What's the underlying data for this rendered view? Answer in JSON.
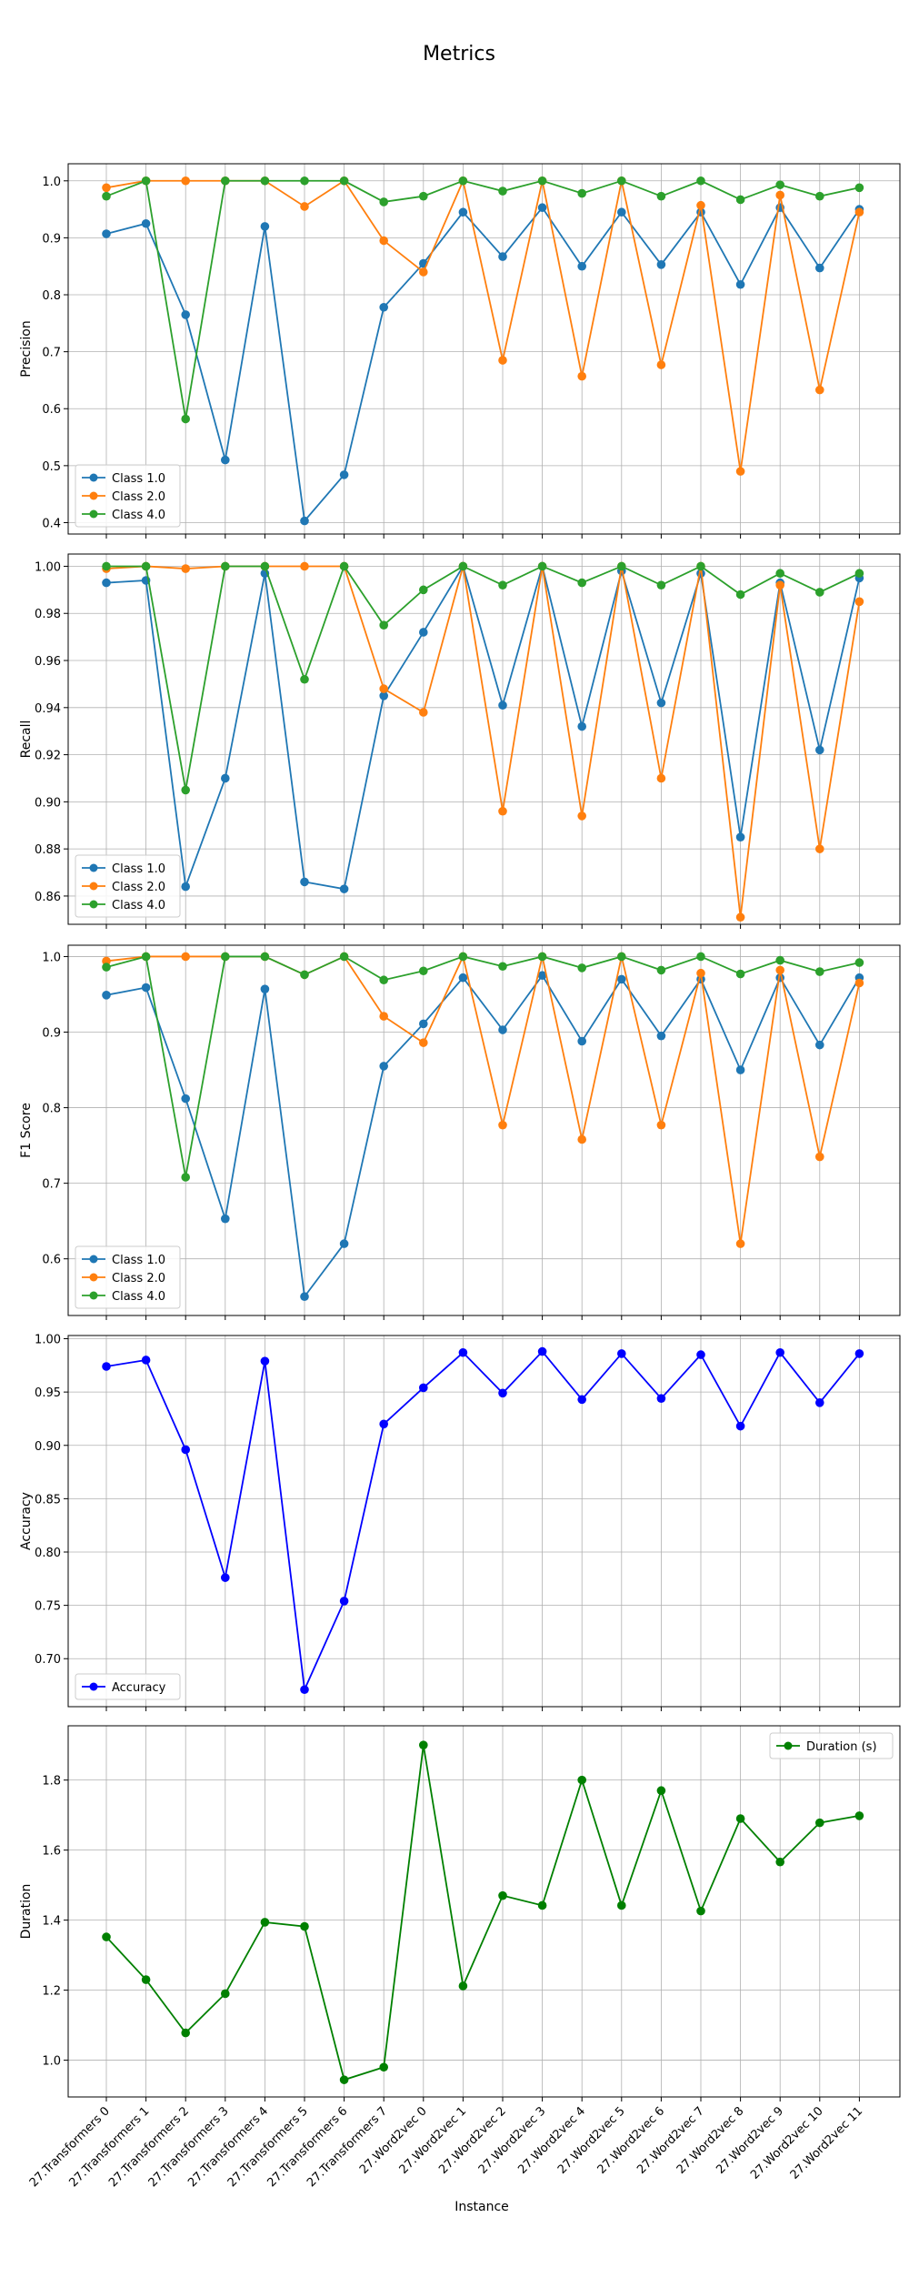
{
  "figure": {
    "title": "Metrics",
    "xlabel": "Instance"
  },
  "colors": {
    "class1": "#1f77b4",
    "class2": "#ff7f0e",
    "class4": "#2ca02c",
    "accuracy": "#0000ff",
    "duration": "#008000",
    "grid": "#b0b0b0"
  },
  "chart_data": [
    {
      "type": "line",
      "ylabel": "Precision",
      "ylim": [
        0.38,
        1.03
      ],
      "yticks": [
        0.4,
        0.5,
        0.6,
        0.7,
        0.8,
        0.9,
        1.0
      ],
      "tick_labels": [
        "0.4",
        "0.5",
        "0.6",
        "0.7",
        "0.8",
        "0.9",
        "1.0"
      ],
      "grid": true,
      "legend_position": "lower-left",
      "categories": [
        "27.Transformers 0",
        "27.Transformers 1",
        "27.Transformers 2",
        "27.Transformers 3",
        "27.Transformers 4",
        "27.Transformers 5",
        "27.Transformers 6",
        "27.Transformers 7",
        "27.Word2vec 0",
        "27.Word2vec 1",
        "27.Word2vec 2",
        "27.Word2vec 3",
        "27.Word2vec 4",
        "27.Word2vec 5",
        "27.Word2vec 6",
        "27.Word2vec 7",
        "27.Word2vec 8",
        "27.Word2vec 9",
        "27.Word2vec 10",
        "27.Word2vec 11"
      ],
      "series": [
        {
          "name": "Class 1.0",
          "color": "#1f77b4",
          "values": [
            0.907,
            0.925,
            0.765,
            0.51,
            0.92,
            0.403,
            0.484,
            0.778,
            0.855,
            0.945,
            0.867,
            0.953,
            0.85,
            0.945,
            0.853,
            0.945,
            0.818,
            0.953,
            0.847,
            0.95
          ]
        },
        {
          "name": "Class 2.0",
          "color": "#ff7f0e",
          "values": [
            0.988,
            1.0,
            1.0,
            1.0,
            1.0,
            0.955,
            1.0,
            0.895,
            0.84,
            1.0,
            0.685,
            1.0,
            0.657,
            1.0,
            0.677,
            0.957,
            0.49,
            0.975,
            0.633,
            0.945
          ]
        },
        {
          "name": "Class 4.0",
          "color": "#2ca02c",
          "values": [
            0.973,
            1.0,
            0.582,
            1.0,
            1.0,
            1.0,
            1.0,
            0.963,
            0.973,
            1.0,
            0.982,
            1.0,
            0.978,
            1.0,
            0.973,
            1.0,
            0.967,
            0.993,
            0.973,
            0.988
          ]
        }
      ]
    },
    {
      "type": "line",
      "ylabel": "Recall",
      "ylim": [
        0.848,
        1.0052
      ],
      "yticks": [
        0.86,
        0.88,
        0.9,
        0.92,
        0.94,
        0.96,
        0.98,
        1.0
      ],
      "tick_labels": [
        "0.86",
        "0.88",
        "0.90",
        "0.92",
        "0.94",
        "0.96",
        "0.98",
        "1.00"
      ],
      "grid": true,
      "legend_position": "lower-left",
      "categories": [
        "27.Transformers 0",
        "27.Transformers 1",
        "27.Transformers 2",
        "27.Transformers 3",
        "27.Transformers 4",
        "27.Transformers 5",
        "27.Transformers 6",
        "27.Transformers 7",
        "27.Word2vec 0",
        "27.Word2vec 1",
        "27.Word2vec 2",
        "27.Word2vec 3",
        "27.Word2vec 4",
        "27.Word2vec 5",
        "27.Word2vec 6",
        "27.Word2vec 7",
        "27.Word2vec 8",
        "27.Word2vec 9",
        "27.Word2vec 10",
        "27.Word2vec 11"
      ],
      "series": [
        {
          "name": "Class 1.0",
          "color": "#1f77b4",
          "values": [
            0.993,
            0.994,
            0.864,
            0.91,
            0.997,
            0.866,
            0.863,
            0.945,
            0.972,
            1.0,
            0.941,
            1.0,
            0.932,
            0.998,
            0.942,
            0.997,
            0.885,
            0.993,
            0.922,
            0.995
          ]
        },
        {
          "name": "Class 2.0",
          "color": "#ff7f0e",
          "values": [
            0.999,
            1.0,
            0.999,
            1.0,
            1.0,
            1.0,
            1.0,
            0.948,
            0.938,
            1.0,
            0.896,
            1.0,
            0.894,
            1.0,
            0.91,
            1.0,
            0.851,
            0.992,
            0.88,
            0.985
          ]
        },
        {
          "name": "Class 4.0",
          "color": "#2ca02c",
          "values": [
            1.0,
            1.0,
            0.905,
            1.0,
            1.0,
            0.952,
            1.0,
            0.975,
            0.99,
            1.0,
            0.992,
            1.0,
            0.993,
            1.0,
            0.992,
            1.0,
            0.988,
            0.997,
            0.989,
            0.997
          ]
        }
      ]
    },
    {
      "type": "line",
      "ylabel": "F1 Score",
      "ylim": [
        0.525,
        1.015
      ],
      "yticks": [
        0.6,
        0.7,
        0.8,
        0.9,
        1.0
      ],
      "tick_labels": [
        "0.6",
        "0.7",
        "0.8",
        "0.9",
        "1.0"
      ],
      "grid": true,
      "legend_position": "lower-left",
      "categories": [
        "27.Transformers 0",
        "27.Transformers 1",
        "27.Transformers 2",
        "27.Transformers 3",
        "27.Transformers 4",
        "27.Transformers 5",
        "27.Transformers 6",
        "27.Transformers 7",
        "27.Word2vec 0",
        "27.Word2vec 1",
        "27.Word2vec 2",
        "27.Word2vec 3",
        "27.Word2vec 4",
        "27.Word2vec 5",
        "27.Word2vec 6",
        "27.Word2vec 7",
        "27.Word2vec 8",
        "27.Word2vec 9",
        "27.Word2vec 10",
        "27.Word2vec 11"
      ],
      "series": [
        {
          "name": "Class 1.0",
          "color": "#1f77b4",
          "values": [
            0.949,
            0.959,
            0.812,
            0.653,
            0.957,
            0.55,
            0.62,
            0.855,
            0.911,
            0.972,
            0.903,
            0.975,
            0.888,
            0.97,
            0.895,
            0.97,
            0.85,
            0.972,
            0.883,
            0.972
          ]
        },
        {
          "name": "Class 2.0",
          "color": "#ff7f0e",
          "values": [
            0.994,
            1.0,
            1.0,
            1.0,
            1.0,
            0.976,
            1.0,
            0.921,
            0.886,
            1.0,
            0.777,
            1.0,
            0.758,
            1.0,
            0.777,
            0.978,
            0.62,
            0.982,
            0.735,
            0.965
          ]
        },
        {
          "name": "Class 4.0",
          "color": "#2ca02c",
          "values": [
            0.986,
            1.0,
            0.708,
            1.0,
            1.0,
            0.976,
            1.0,
            0.969,
            0.981,
            1.0,
            0.987,
            1.0,
            0.985,
            1.0,
            0.982,
            1.0,
            0.977,
            0.995,
            0.98,
            0.992
          ]
        }
      ]
    },
    {
      "type": "line",
      "ylabel": "Accuracy",
      "ylim": [
        0.655,
        1.003
      ],
      "yticks": [
        0.7,
        0.75,
        0.8,
        0.85,
        0.9,
        0.95,
        1.0
      ],
      "tick_labels": [
        "0.70",
        "0.75",
        "0.80",
        "0.85",
        "0.90",
        "0.95",
        "1.00"
      ],
      "grid": true,
      "legend_position": "lower-left",
      "categories": [
        "27.Transformers 0",
        "27.Transformers 1",
        "27.Transformers 2",
        "27.Transformers 3",
        "27.Transformers 4",
        "27.Transformers 5",
        "27.Transformers 6",
        "27.Transformers 7",
        "27.Word2vec 0",
        "27.Word2vec 1",
        "27.Word2vec 2",
        "27.Word2vec 3",
        "27.Word2vec 4",
        "27.Word2vec 5",
        "27.Word2vec 6",
        "27.Word2vec 7",
        "27.Word2vec 8",
        "27.Word2vec 9",
        "27.Word2vec 10",
        "27.Word2vec 11"
      ],
      "series": [
        {
          "name": "Accuracy",
          "color": "#0000ff",
          "values": [
            0.974,
            0.98,
            0.896,
            0.776,
            0.979,
            0.671,
            0.754,
            0.92,
            0.954,
            0.987,
            0.949,
            0.988,
            0.943,
            0.986,
            0.944,
            0.985,
            0.918,
            0.987,
            0.94,
            0.986
          ]
        }
      ]
    },
    {
      "type": "line",
      "ylabel": "Duration",
      "ylim": [
        0.895,
        1.955
      ],
      "yticks": [
        1.0,
        1.2,
        1.4,
        1.6,
        1.8
      ],
      "tick_labels": [
        "1.0",
        "1.2",
        "1.4",
        "1.6",
        "1.8"
      ],
      "grid": true,
      "legend_position": "upper-right",
      "categories": [
        "27.Transformers 0",
        "27.Transformers 1",
        "27.Transformers 2",
        "27.Transformers 3",
        "27.Transformers 4",
        "27.Transformers 5",
        "27.Transformers 6",
        "27.Transformers 7",
        "27.Word2vec 0",
        "27.Word2vec 1",
        "27.Word2vec 2",
        "27.Word2vec 3",
        "27.Word2vec 4",
        "27.Word2vec 5",
        "27.Word2vec 6",
        "27.Word2vec 7",
        "27.Word2vec 8",
        "27.Word2vec 9",
        "27.Word2vec 10",
        "27.Word2vec 11"
      ],
      "series": [
        {
          "name": "Duration (s)",
          "color": "#008000",
          "values": [
            1.352,
            1.23,
            1.078,
            1.19,
            1.394,
            1.382,
            0.944,
            0.98,
            1.9,
            1.212,
            1.47,
            1.442,
            1.8,
            1.442,
            1.77,
            1.426,
            1.69,
            1.566,
            1.678,
            1.698
          ]
        }
      ]
    }
  ]
}
